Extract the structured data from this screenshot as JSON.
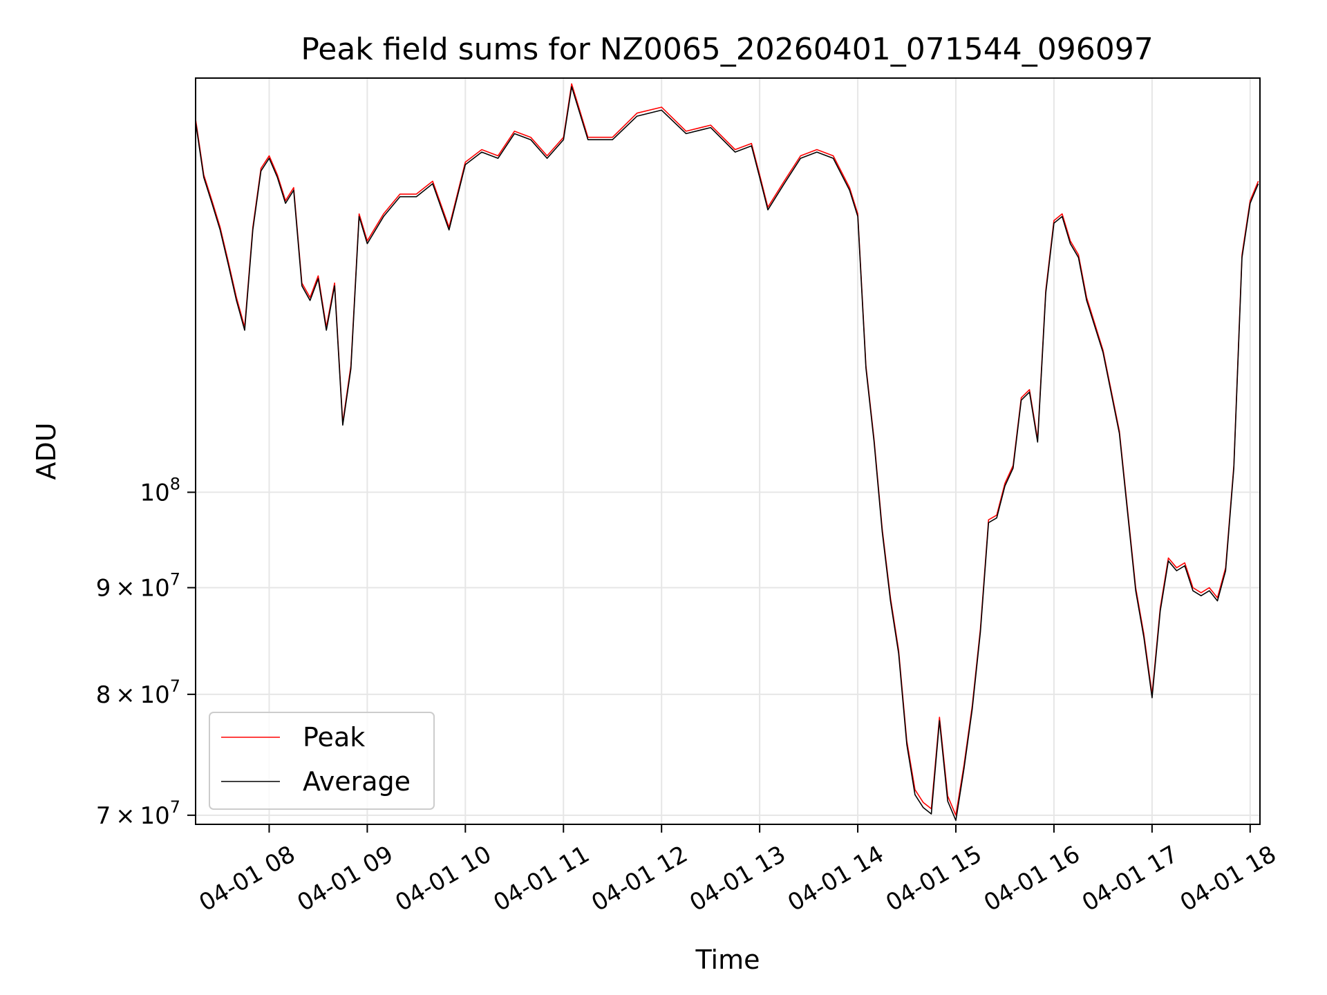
{
  "chart_data": {
    "type": "line",
    "title": "Peak field sums for NZ0065_20260401_071544_096097",
    "xlabel": "Time",
    "ylabel": "ADU",
    "yscale": "log",
    "xlim": [
      "2026-04-01 07:15",
      "2026-04-01 18:06"
    ],
    "ylim": [
      69300000,
      158000000
    ],
    "grid": true,
    "legend": {
      "placement": "lower-left",
      "entries": [
        "Peak",
        "Average"
      ]
    },
    "x_ticks": [
      {
        "label": "04-01 08",
        "value": "2026-04-01 08:00"
      },
      {
        "label": "04-01 09",
        "value": "2026-04-01 09:00"
      },
      {
        "label": "04-01 10",
        "value": "2026-04-01 10:00"
      },
      {
        "label": "04-01 11",
        "value": "2026-04-01 11:00"
      },
      {
        "label": "04-01 12",
        "value": "2026-04-01 12:00"
      },
      {
        "label": "04-01 13",
        "value": "2026-04-01 13:00"
      },
      {
        "label": "04-01 14",
        "value": "2026-04-01 14:00"
      },
      {
        "label": "04-01 15",
        "value": "2026-04-01 15:00"
      },
      {
        "label": "04-01 16",
        "value": "2026-04-01 16:00"
      },
      {
        "label": "04-01 17",
        "value": "2026-04-01 17:00"
      },
      {
        "label": "04-01 18",
        "value": "2026-04-01 18:00"
      }
    ],
    "y_ticks": [
      {
        "mantissa": "7",
        "times": "×",
        "base": "10",
        "exp": "7",
        "value": 70000000
      },
      {
        "mantissa": "8",
        "times": "×",
        "base": "10",
        "exp": "7",
        "value": 80000000
      },
      {
        "mantissa": "9",
        "times": "×",
        "base": "10",
        "exp": "7",
        "value": 90000000
      },
      {
        "mantissa": "",
        "times": "",
        "base": "10",
        "exp": "8",
        "value": 100000000
      }
    ],
    "series": [
      {
        "name": "Peak",
        "color": "#ff0000",
        "x": [
          "2026-04-01 07:15",
          "2026-04-01 07:20",
          "2026-04-01 07:25",
          "2026-04-01 07:30",
          "2026-04-01 07:35",
          "2026-04-01 07:40",
          "2026-04-01 07:45",
          "2026-04-01 07:50",
          "2026-04-01 07:55",
          "2026-04-01 08:00",
          "2026-04-01 08:05",
          "2026-04-01 08:10",
          "2026-04-01 08:15",
          "2026-04-01 08:20",
          "2026-04-01 08:25",
          "2026-04-01 08:30",
          "2026-04-01 08:35",
          "2026-04-01 08:40",
          "2026-04-01 08:45",
          "2026-04-01 08:50",
          "2026-04-01 08:55",
          "2026-04-01 09:00",
          "2026-04-01 09:10",
          "2026-04-01 09:20",
          "2026-04-01 09:30",
          "2026-04-01 09:40",
          "2026-04-01 09:50",
          "2026-04-01 10:00",
          "2026-04-01 10:10",
          "2026-04-01 10:20",
          "2026-04-01 10:30",
          "2026-04-01 10:40",
          "2026-04-01 10:50",
          "2026-04-01 11:00",
          "2026-04-01 11:05",
          "2026-04-01 11:15",
          "2026-04-01 11:30",
          "2026-04-01 11:45",
          "2026-04-01 12:00",
          "2026-04-01 12:15",
          "2026-04-01 12:30",
          "2026-04-01 12:45",
          "2026-04-01 12:55",
          "2026-04-01 13:00",
          "2026-04-01 13:05",
          "2026-04-01 13:15",
          "2026-04-01 13:25",
          "2026-04-01 13:35",
          "2026-04-01 13:45",
          "2026-04-01 13:55",
          "2026-04-01 14:00",
          "2026-04-01 14:05",
          "2026-04-01 14:10",
          "2026-04-01 14:15",
          "2026-04-01 14:20",
          "2026-04-01 14:25",
          "2026-04-01 14:30",
          "2026-04-01 14:35",
          "2026-04-01 14:40",
          "2026-04-01 14:45",
          "2026-04-01 14:50",
          "2026-04-01 14:55",
          "2026-04-01 15:00",
          "2026-04-01 15:05",
          "2026-04-01 15:10",
          "2026-04-01 15:15",
          "2026-04-01 15:20",
          "2026-04-01 15:25",
          "2026-04-01 15:30",
          "2026-04-01 15:35",
          "2026-04-01 15:40",
          "2026-04-01 15:45",
          "2026-04-01 15:50",
          "2026-04-01 15:55",
          "2026-04-01 16:00",
          "2026-04-01 16:05",
          "2026-04-01 16:10",
          "2026-04-01 16:15",
          "2026-04-01 16:20",
          "2026-04-01 16:30",
          "2026-04-01 16:40",
          "2026-04-01 16:50",
          "2026-04-01 16:55",
          "2026-04-01 17:00",
          "2026-04-01 17:05",
          "2026-04-01 17:10",
          "2026-04-01 17:15",
          "2026-04-01 17:20",
          "2026-04-01 17:25",
          "2026-04-01 17:30",
          "2026-04-01 17:35",
          "2026-04-01 17:40",
          "2026-04-01 17:45",
          "2026-04-01 17:50",
          "2026-04-01 17:55",
          "2026-04-01 18:00",
          "2026-04-01 18:05"
        ],
        "y": [
          151000000,
          142000000,
          138000000,
          134000000,
          129000000,
          124000000,
          120000000,
          134000000,
          143000000,
          145000000,
          142000000,
          138000000,
          140000000,
          126000000,
          124000000,
          127000000,
          120000000,
          126000000,
          108000000,
          115000000,
          136000000,
          132000000,
          136000000,
          139000000,
          139000000,
          141000000,
          134000000,
          144000000,
          146000000,
          145000000,
          149000000,
          148000000,
          145000000,
          148000000,
          157000000,
          148000000,
          148000000,
          152000000,
          153000000,
          149000000,
          150000000,
          146000000,
          147000000,
          142000000,
          137000000,
          141000000,
          145000000,
          146000000,
          145000000,
          140000000,
          136000000,
          115000000,
          106000000,
          96000000,
          89000000,
          84000000,
          76000000,
          72000000,
          71000000,
          70500000,
          78000000,
          71500000,
          70000000,
          74000000,
          79000000,
          86000000,
          97000000,
          97500000,
          101000000,
          103000000,
          111000000,
          112000000,
          106000000,
          125000000,
          135000000,
          136000000,
          132000000,
          130000000,
          124000000,
          117000000,
          107000000,
          90000000,
          85500000,
          80000000,
          88000000,
          93000000,
          92000000,
          92500000,
          90000000,
          89500000,
          90000000,
          89000000,
          92000000,
          103000000,
          130000000,
          138000000,
          141000000
        ]
      },
      {
        "name": "Average",
        "color": "#000000",
        "x": [
          "2026-04-01 07:15",
          "2026-04-01 07:20",
          "2026-04-01 07:25",
          "2026-04-01 07:30",
          "2026-04-01 07:35",
          "2026-04-01 07:40",
          "2026-04-01 07:45",
          "2026-04-01 07:50",
          "2026-04-01 07:55",
          "2026-04-01 08:00",
          "2026-04-01 08:05",
          "2026-04-01 08:10",
          "2026-04-01 08:15",
          "2026-04-01 08:20",
          "2026-04-01 08:25",
          "2026-04-01 08:30",
          "2026-04-01 08:35",
          "2026-04-01 08:40",
          "2026-04-01 08:45",
          "2026-04-01 08:50",
          "2026-04-01 08:55",
          "2026-04-01 09:00",
          "2026-04-01 09:10",
          "2026-04-01 09:20",
          "2026-04-01 09:30",
          "2026-04-01 09:40",
          "2026-04-01 09:50",
          "2026-04-01 10:00",
          "2026-04-01 10:10",
          "2026-04-01 10:20",
          "2026-04-01 10:30",
          "2026-04-01 10:40",
          "2026-04-01 10:50",
          "2026-04-01 11:00",
          "2026-04-01 11:05",
          "2026-04-01 11:15",
          "2026-04-01 11:30",
          "2026-04-01 11:45",
          "2026-04-01 12:00",
          "2026-04-01 12:15",
          "2026-04-01 12:30",
          "2026-04-01 12:45",
          "2026-04-01 12:55",
          "2026-04-01 13:00",
          "2026-04-01 13:05",
          "2026-04-01 13:15",
          "2026-04-01 13:25",
          "2026-04-01 13:35",
          "2026-04-01 13:45",
          "2026-04-01 13:55",
          "2026-04-01 14:00",
          "2026-04-01 14:05",
          "2026-04-01 14:10",
          "2026-04-01 14:15",
          "2026-04-01 14:20",
          "2026-04-01 14:25",
          "2026-04-01 14:30",
          "2026-04-01 14:35",
          "2026-04-01 14:40",
          "2026-04-01 14:45",
          "2026-04-01 14:50",
          "2026-04-01 14:55",
          "2026-04-01 15:00",
          "2026-04-01 15:05",
          "2026-04-01 15:10",
          "2026-04-01 15:15",
          "2026-04-01 15:20",
          "2026-04-01 15:25",
          "2026-04-01 15:30",
          "2026-04-01 15:35",
          "2026-04-01 15:40",
          "2026-04-01 15:45",
          "2026-04-01 15:50",
          "2026-04-01 15:55",
          "2026-04-01 16:00",
          "2026-04-01 16:05",
          "2026-04-01 16:10",
          "2026-04-01 16:15",
          "2026-04-01 16:20",
          "2026-04-01 16:30",
          "2026-04-01 16:40",
          "2026-04-01 16:50",
          "2026-04-01 16:55",
          "2026-04-01 17:00",
          "2026-04-01 17:05",
          "2026-04-01 17:10",
          "2026-04-01 17:15",
          "2026-04-01 17:20",
          "2026-04-01 17:25",
          "2026-04-01 17:30",
          "2026-04-01 17:35",
          "2026-04-01 17:40",
          "2026-04-01 17:45",
          "2026-04-01 17:50",
          "2026-04-01 17:55",
          "2026-04-01 18:00",
          "2026-04-01 18:05"
        ],
        "y": [
          150500000,
          141600000,
          137600000,
          133600000,
          128600000,
          123600000,
          119600000,
          133600000,
          142600000,
          144600000,
          141600000,
          137600000,
          139600000,
          125600000,
          123600000,
          126600000,
          119600000,
          125600000,
          107700000,
          114600000,
          135600000,
          131600000,
          135600000,
          138600000,
          138600000,
          140600000,
          133600000,
          143600000,
          145600000,
          144600000,
          148600000,
          147600000,
          144600000,
          147600000,
          156500000,
          147600000,
          147600000,
          151500000,
          152500000,
          148600000,
          149600000,
          145600000,
          146600000,
          141600000,
          136600000,
          140600000,
          144600000,
          145600000,
          144600000,
          139600000,
          135600000,
          114700000,
          105700000,
          95700000,
          88700000,
          83700000,
          75700000,
          71600000,
          70600000,
          70100000,
          77700000,
          71100000,
          69600000,
          73700000,
          78700000,
          85700000,
          96700000,
          97200000,
          100700000,
          102700000,
          110700000,
          111700000,
          105700000,
          124600000,
          134600000,
          135600000,
          131600000,
          129600000,
          123600000,
          116700000,
          106700000,
          89700000,
          85200000,
          79700000,
          87700000,
          92700000,
          91700000,
          92200000,
          89700000,
          89200000,
          89700000,
          88700000,
          91700000,
          102700000,
          129600000,
          137600000,
          140600000
        ]
      }
    ]
  }
}
